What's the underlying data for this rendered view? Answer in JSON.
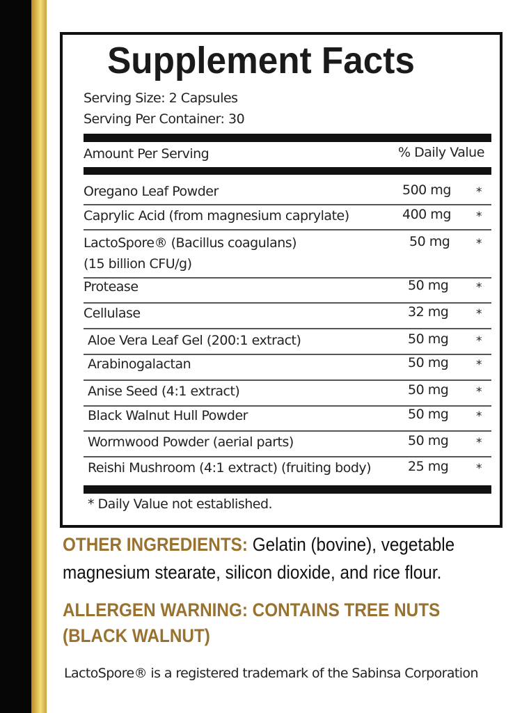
{
  "title": "Supplement Facts",
  "serving_size": "Serving Size: 2 Capsules",
  "servings_per_container": "Serving Per Container: 30",
  "header": {
    "amount": "Amount Per Serving",
    "dv": "% Daily Value"
  },
  "rows": [
    {
      "name": "Oregano Leaf Powder",
      "amount": "500 mg",
      "dv": "*"
    },
    {
      "name": "Caprylic Acid (from magnesium caprylate)",
      "amount": "400 mg",
      "dv": "*"
    },
    {
      "name": "LactoSpore® (Bacillus coagulans)",
      "name2": "(15 billion CFU/g)",
      "amount": "50 mg",
      "dv": "*"
    },
    {
      "name": "Protease",
      "amount": "50 mg",
      "dv": "*"
    },
    {
      "name": "Cellulase",
      "amount": "32 mg",
      "dv": "*"
    },
    {
      "name": "Aloe Vera Leaf Gel (200:1 extract)",
      "amount": "50 mg",
      "dv": "*"
    },
    {
      "name": "Arabinogalactan",
      "amount": "50 mg",
      "dv": "*"
    },
    {
      "name": "Anise Seed (4:1 extract)",
      "amount": "50 mg",
      "dv": "*"
    },
    {
      "name": "Black Walnut Hull Powder",
      "amount": "50 mg",
      "dv": "*"
    },
    {
      "name": "Wormwood Powder (aerial parts)",
      "amount": "50 mg",
      "dv": "*"
    },
    {
      "name": "Reishi Mushroom (4:1 extract) (fruiting body)",
      "amount": "25 mg",
      "dv": "*"
    }
  ],
  "footnote": "* Daily Value not established.",
  "other": {
    "label": "OTHER INGREDIENTS:",
    "text1": " Gelatin (bovine), vegetable",
    "text2": "magnesium stearate, silicon dioxide, and rice flour."
  },
  "allergen": {
    "line1": "ALLERGEN WARNING: CONTAINS TREE NUTS",
    "line2": "(BLACK WALNUT)"
  },
  "trademark": "LactoSpore® is a registered trademark of the Sabinsa Corporation",
  "colors": {
    "gold_text": "#9a7230",
    "strip_black": "#060606",
    "strip_gold": "#e8c95a"
  }
}
